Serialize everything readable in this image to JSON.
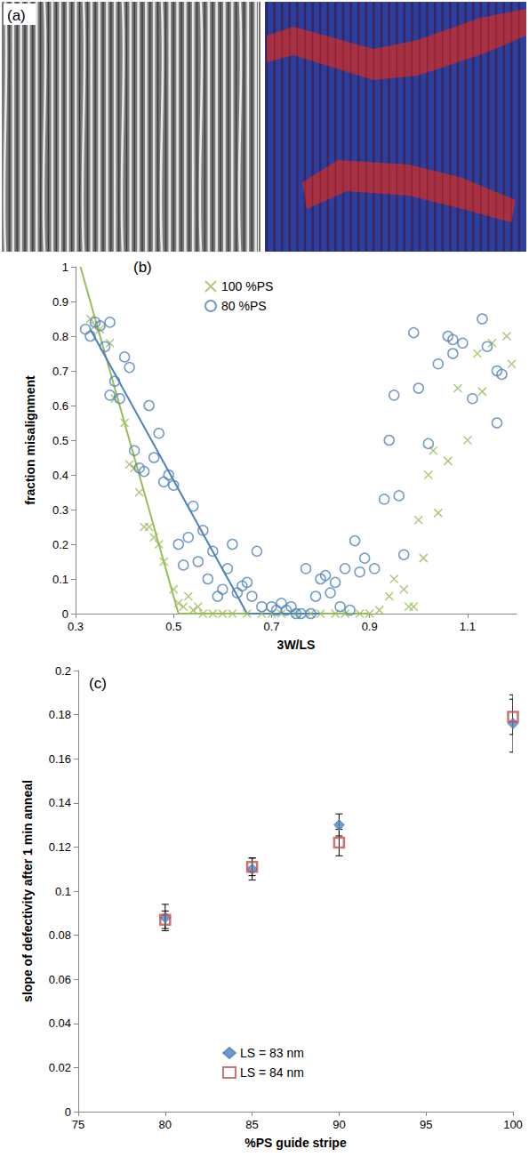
{
  "panel_a": {
    "label": "(a)"
  },
  "chart_data": [
    {
      "type": "scatter",
      "label": "(b)",
      "x_label": "3W/LS",
      "y_label": "fraction misalignment",
      "xlim": [
        0.3,
        1.2
      ],
      "xticks": [
        0.3,
        0.5,
        0.7,
        0.9,
        1.1
      ],
      "ylim": [
        0,
        1
      ],
      "yticks": [
        0,
        0.1,
        0.2,
        0.3,
        0.4,
        0.5,
        0.6,
        0.7,
        0.8,
        0.9,
        1
      ],
      "grid": false,
      "legend": "top",
      "series": [
        {
          "name": "100 %PS",
          "type": "scatter",
          "marker": "x",
          "color": "#9bbb59",
          "x": [
            0.33,
            0.34,
            0.35,
            0.37,
            0.38,
            0.4,
            0.41,
            0.42,
            0.43,
            0.44,
            0.45,
            0.46,
            0.47,
            0.48,
            0.5,
            0.51,
            0.52,
            0.53,
            0.54,
            0.55,
            0.56,
            0.58,
            0.6,
            0.62,
            0.65,
            0.68,
            0.7,
            0.72,
            0.75,
            0.78,
            0.8,
            0.83,
            0.85,
            0.88,
            0.9,
            0.92,
            0.94,
            0.95,
            0.97,
            0.98,
            0.99,
            1.0,
            1.01,
            1.02,
            1.03,
            1.04,
            1.06,
            1.08,
            1.1,
            1.12,
            1.13,
            1.15,
            1.18,
            1.19
          ],
          "values": [
            0.85,
            0.83,
            0.82,
            0.78,
            0.62,
            0.55,
            0.43,
            0.42,
            0.35,
            0.25,
            0.25,
            0.22,
            0.2,
            0.15,
            0.07,
            0.03,
            0.02,
            0.05,
            0.01,
            0.02,
            0,
            0,
            0,
            0,
            0,
            0,
            0,
            0,
            0,
            0,
            0,
            0,
            0,
            0,
            0,
            0.01,
            0.05,
            0.1,
            0.07,
            0.02,
            0.02,
            0.27,
            0.16,
            0.4,
            0.47,
            0.29,
            0.44,
            0.65,
            0.5,
            0.75,
            0.64,
            0.78,
            0.8,
            0.72
          ]
        },
        {
          "name": "80 %PS",
          "type": "scatter",
          "marker": "open_circle",
          "color": "#4f81bd",
          "x": [
            0.32,
            0.33,
            0.34,
            0.35,
            0.36,
            0.37,
            0.37,
            0.38,
            0.39,
            0.4,
            0.41,
            0.42,
            0.43,
            0.44,
            0.45,
            0.46,
            0.47,
            0.48,
            0.49,
            0.5,
            0.51,
            0.52,
            0.53,
            0.54,
            0.55,
            0.56,
            0.57,
            0.58,
            0.59,
            0.6,
            0.61,
            0.62,
            0.63,
            0.64,
            0.65,
            0.66,
            0.67,
            0.68,
            0.7,
            0.71,
            0.72,
            0.73,
            0.74,
            0.75,
            0.76,
            0.77,
            0.78,
            0.79,
            0.8,
            0.81,
            0.82,
            0.83,
            0.84,
            0.85,
            0.86,
            0.87,
            0.88,
            0.89,
            0.91,
            0.93,
            0.94,
            0.95,
            0.96,
            0.97,
            0.99,
            1.0,
            1.02,
            1.04,
            1.06,
            1.07,
            1.07,
            1.09,
            1.11,
            1.13,
            1.14,
            1.16,
            1.17,
            1.16
          ],
          "values": [
            0.82,
            0.8,
            0.84,
            0.83,
            0.77,
            0.84,
            0.63,
            0.67,
            0.62,
            0.74,
            0.71,
            0.47,
            0.42,
            0.41,
            0.6,
            0.45,
            0.52,
            0.38,
            0.4,
            0.37,
            0.2,
            0.14,
            0.22,
            0.31,
            0.15,
            0.24,
            0.1,
            0.18,
            0.05,
            0.07,
            0.13,
            0.2,
            0.06,
            0.08,
            0.09,
            0.05,
            0.18,
            0.02,
            0.02,
            0.01,
            0.03,
            0.01,
            0.02,
            0,
            0,
            0.13,
            0,
            0.05,
            0.1,
            0.11,
            0.06,
            0.09,
            0.02,
            0.13,
            0.01,
            0.21,
            0.12,
            0.16,
            0.13,
            0.33,
            0.5,
            0.63,
            0.34,
            0.17,
            0.81,
            0.65,
            0.49,
            0.72,
            0.8,
            0.75,
            0.79,
            0.78,
            0.62,
            0.85,
            0.77,
            0.7,
            0.69,
            0.55
          ]
        },
        {
          "type": "line",
          "line_style": "solid",
          "color": "#9bbb59",
          "x": [
            0.31,
            0.51,
            0.9
          ],
          "values": [
            1,
            0,
            0
          ]
        },
        {
          "type": "line",
          "line_style": "solid",
          "color": "#4f81bd",
          "x": [
            0.33,
            0.65,
            0.8
          ],
          "values": [
            0.82,
            0,
            0
          ]
        }
      ]
    },
    {
      "type": "scatter",
      "label": "(c)",
      "x_label": "%PS guide stripe",
      "y_label": "slope of defectivity after 1 min anneal",
      "xlim": [
        75,
        100
      ],
      "xticks": [
        75,
        80,
        85,
        90,
        95,
        100
      ],
      "ylim": [
        0,
        0.2
      ],
      "yticks": [
        0,
        0.02,
        0.04,
        0.06,
        0.08,
        0.1,
        0.12,
        0.14,
        0.16,
        0.18,
        0.2
      ],
      "grid": false,
      "legend": "bottom",
      "series": [
        {
          "name": "LS = 83 nm",
          "type": "scatter",
          "marker": "diamond",
          "color": "#4f81bd",
          "x": [
            80,
            85,
            90,
            100
          ],
          "values": [
            0.088,
            0.11,
            0.13,
            0.176
          ],
          "errors": [
            0.006,
            0.005,
            0.005,
            0.013
          ]
        },
        {
          "name": "LS = 84 nm",
          "type": "scatter",
          "marker": "open_square",
          "color": "#c0504d",
          "x": [
            80,
            85,
            90,
            100
          ],
          "values": [
            0.087,
            0.111,
            0.122,
            0.179
          ],
          "errors": [
            0.004,
            0.004,
            0.006,
            0.008
          ]
        }
      ]
    }
  ]
}
